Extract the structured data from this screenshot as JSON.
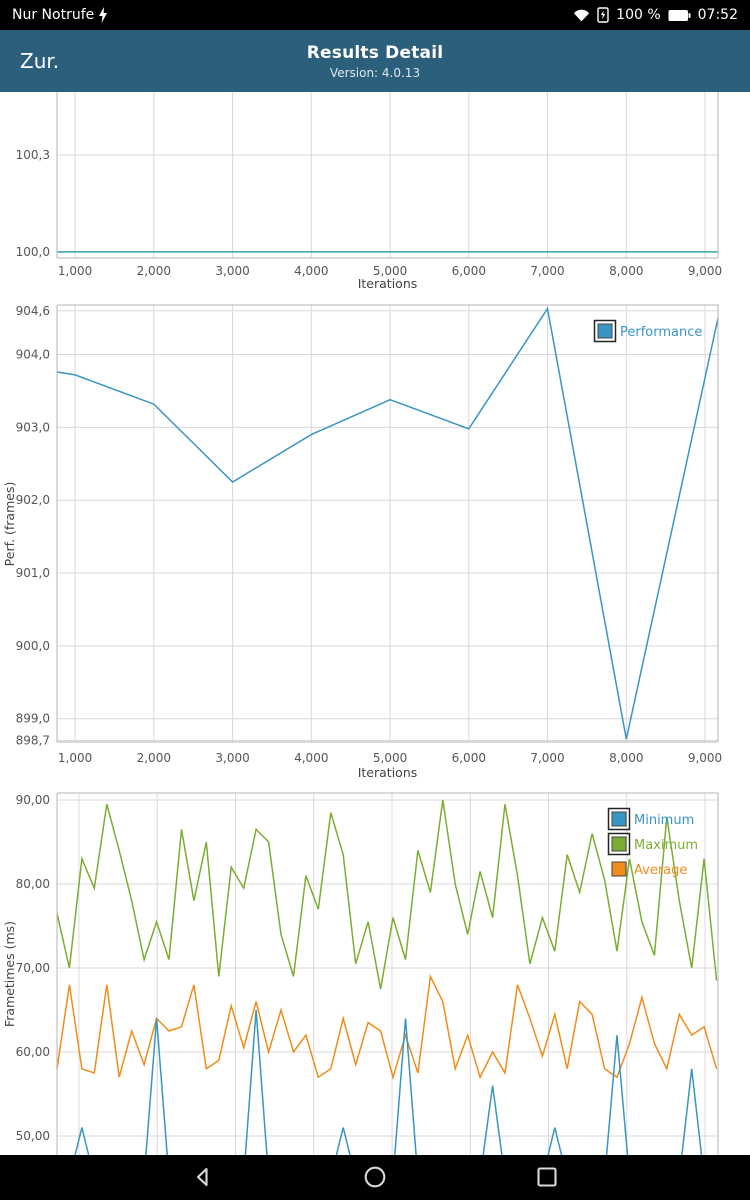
{
  "status_bar": {
    "carrier": "Nur Notrufe",
    "battery_percent": "100 %",
    "time": "07:52"
  },
  "header": {
    "back_label": "Zur.",
    "title": "Results Detail",
    "subtitle": "Version: 4.0.13"
  },
  "nav_bar": {
    "back": "back",
    "home": "home",
    "recents": "recents"
  },
  "colors": {
    "header_bg": "#2c5f7c",
    "status_bg": "#000000",
    "nav_bg": "#000000",
    "grid": "#d8d8d8",
    "border": "#b4b4b4",
    "tick_text": "#555555",
    "blue": "#3a95c2",
    "teal": "#35a3a3",
    "green": "#7aad33",
    "orange": "#ef8c1a"
  },
  "chart_data": [
    {
      "type": "line",
      "title": "",
      "xlabel": "Iterations",
      "ylabel": "",
      "xlim": [
        770,
        9165
      ],
      "ylim": [
        99.981,
        100.495
      ],
      "x_ticks": [
        1000,
        2000,
        3000,
        4000,
        5000,
        6000,
        7000,
        8000,
        9000
      ],
      "x_tick_labels": [
        "1,000",
        "2,000",
        "3,000",
        "4,000",
        "5,000",
        "6,000",
        "7,000",
        "8,000",
        "9,000"
      ],
      "y_ticks": [
        100.0,
        100.3
      ],
      "y_tick_labels": [
        "100,0",
        "100,3"
      ],
      "grid": true,
      "legend": [],
      "series": [
        {
          "name": "Value",
          "color": "#35a3a3",
          "points": [
            [
              770,
              100.0
            ],
            [
              9165,
              100.0
            ]
          ]
        }
      ]
    },
    {
      "type": "line",
      "title": "",
      "xlabel": "Iterations",
      "ylabel": "Perf. (frames)",
      "xlim": [
        770,
        9165
      ],
      "ylim": [
        898.68,
        904.68
      ],
      "x_ticks": [
        1000,
        2000,
        3000,
        4000,
        5000,
        6000,
        7000,
        8000,
        9000
      ],
      "x_tick_labels": [
        "1,000",
        "2,000",
        "3,000",
        "4,000",
        "5,000",
        "6,000",
        "7,000",
        "8,000",
        "9,000"
      ],
      "y_ticks": [
        898.7,
        899.0,
        900.0,
        901.0,
        902.0,
        903.0,
        904.0,
        904.6
      ],
      "y_tick_labels": [
        "898,7",
        "899,0",
        "900,0",
        "901,0",
        "902,0",
        "903,0",
        "904,0",
        "904,6"
      ],
      "grid": true,
      "legend": [
        {
          "label": "Performance",
          "color": "#3a95c2",
          "boxed": true
        }
      ],
      "series": [
        {
          "name": "Performance",
          "color": "#3a95c2",
          "points": [
            [
              770,
              903.76
            ],
            [
              1000,
              903.72
            ],
            [
              2000,
              903.32
            ],
            [
              3000,
              902.25
            ],
            [
              4000,
              902.9
            ],
            [
              5000,
              903.38
            ],
            [
              6000,
              902.98
            ],
            [
              7000,
              904.63
            ],
            [
              8000,
              898.72
            ],
            [
              9165,
              904.5
            ]
          ]
        }
      ]
    },
    {
      "type": "line",
      "title": "",
      "xlabel": "",
      "ylabel": "Frametimes (ms)",
      "xlim": [
        720,
        9165
      ],
      "ylim": [
        45.0,
        90.833
      ],
      "x_ticks": [
        1000,
        2000,
        3000,
        4000,
        5000,
        6000,
        7000,
        8000,
        9000
      ],
      "x_tick_labels": [],
      "y_ticks": [
        50,
        60,
        70,
        80,
        90
      ],
      "y_tick_labels": [
        "50,00",
        "60,00",
        "70,00",
        "80,00",
        "90,00"
      ],
      "grid": true,
      "legend": [
        {
          "label": "Minimum",
          "color": "#3a95c2",
          "boxed": true
        },
        {
          "label": "Maximum",
          "color": "#7aad33",
          "boxed": true
        },
        {
          "label": "Average",
          "color": "#ef8c1a",
          "boxed": false
        }
      ],
      "series": [
        {
          "name": "Maximum",
          "color": "#7aad33",
          "x_start": 720,
          "x_step": 159,
          "values": [
            76.5,
            70,
            83,
            79.5,
            89.5,
            84,
            78,
            71,
            75.5,
            71,
            86.5,
            78,
            85,
            69,
            82,
            79.5,
            86.5,
            85,
            74,
            69,
            81,
            77,
            88.5,
            83.5,
            70.5,
            75.5,
            67.5,
            76,
            71,
            84,
            79,
            90,
            80,
            74,
            81.5,
            76,
            89.5,
            81,
            70.5,
            76,
            72,
            83.5,
            79,
            86,
            80.5,
            72,
            83,
            75.5,
            71.5,
            88,
            78,
            70,
            83,
            68.5
          ]
        },
        {
          "name": "Average",
          "color": "#ef8c1a",
          "x_start": 720,
          "x_step": 159,
          "values": [
            58,
            68,
            58,
            57.5,
            68,
            57,
            62.5,
            58.5,
            64,
            62.5,
            63,
            68,
            58,
            59,
            65.5,
            60.5,
            66,
            60,
            65,
            60,
            62,
            57,
            58,
            64,
            58.5,
            63.5,
            62.5,
            57,
            62,
            57.5,
            69,
            66,
            58,
            62,
            57,
            60,
            57.5,
            68,
            64,
            59.5,
            64.5,
            58,
            66,
            64.5,
            58,
            57,
            61,
            66.5,
            61,
            58,
            64.5,
            62,
            63,
            58
          ]
        },
        {
          "name": "Minimum",
          "color": "#3a95c2",
          "x_start": 720,
          "x_step": 159,
          "values": [
            45,
            45,
            51,
            45,
            45,
            45,
            45,
            45,
            64,
            45,
            45,
            45,
            45,
            45,
            45,
            45,
            65,
            45,
            45,
            45,
            45,
            45,
            45,
            51,
            45,
            45,
            45,
            45,
            64,
            45,
            45,
            45,
            45,
            45,
            45,
            56,
            45,
            45,
            45,
            45,
            51,
            45,
            45,
            45,
            45,
            62,
            45,
            45,
            45,
            45,
            45,
            58,
            45,
            45
          ]
        }
      ]
    }
  ]
}
